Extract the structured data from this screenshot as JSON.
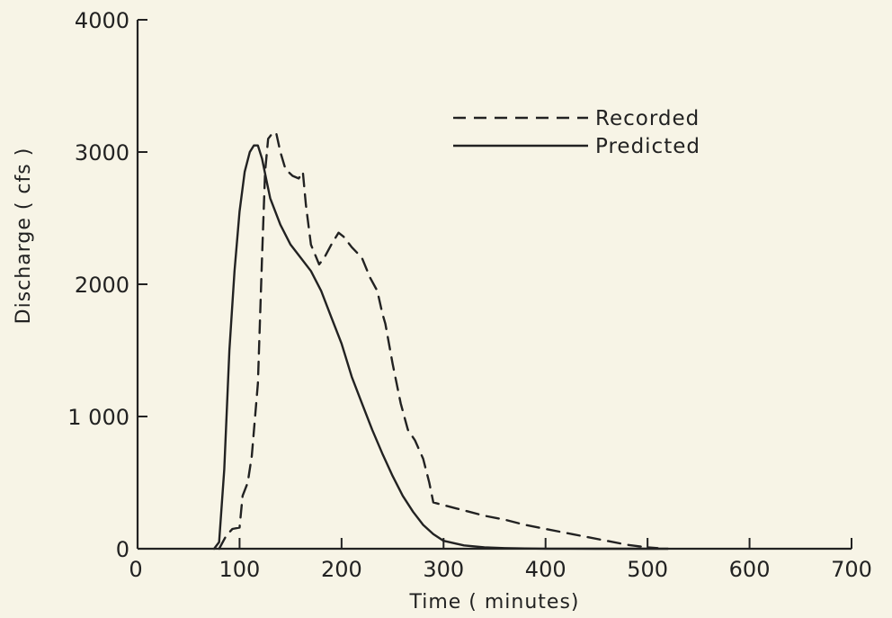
{
  "chart_data": {
    "type": "line",
    "xlabel": "Time ( minutes)",
    "ylabel": "Discharge ( cfs )",
    "xlim": [
      0,
      700
    ],
    "ylim": [
      0,
      4000
    ],
    "xticks": [
      0,
      100,
      200,
      300,
      400,
      500,
      600,
      700
    ],
    "xtick_labels": [
      "0",
      "100",
      "200",
      "300",
      "400",
      "500",
      "600",
      "700"
    ],
    "yticks": [
      0,
      1000,
      2000,
      3000,
      4000
    ],
    "ytick_labels": [
      "0",
      "1 000",
      "2000",
      "3000",
      "4000"
    ],
    "grid": false,
    "legend_position": "top-right",
    "series": [
      {
        "name": "Recorded",
        "style": "dashed",
        "color": "#222222",
        "x": [
          80,
          87,
          93,
          100,
          103,
          108,
          112,
          118,
          122,
          125,
          128,
          133,
          136,
          140,
          145,
          152,
          158,
          162,
          165,
          170,
          178,
          183,
          190,
          197,
          202,
          210,
          220,
          228,
          235,
          240,
          243,
          250,
          258,
          265,
          272,
          280,
          286,
          290,
          300,
          320,
          340,
          360,
          380,
          400,
          420,
          440,
          460,
          480,
          500,
          510
        ],
        "y": [
          0,
          100,
          150,
          160,
          400,
          500,
          700,
          1250,
          2200,
          2850,
          3100,
          3150,
          3140,
          3000,
          2870,
          2820,
          2800,
          2850,
          2600,
          2300,
          2150,
          2200,
          2300,
          2390,
          2360,
          2280,
          2200,
          2050,
          1950,
          1780,
          1700,
          1400,
          1100,
          900,
          820,
          680,
          500,
          350,
          330,
          290,
          250,
          220,
          180,
          150,
          120,
          90,
          60,
          30,
          10,
          5
        ]
      },
      {
        "name": "Predicted",
        "style": "solid",
        "color": "#222222",
        "x": [
          75,
          80,
          85,
          90,
          95,
          100,
          105,
          110,
          114,
          118,
          122,
          126,
          130,
          140,
          150,
          160,
          170,
          180,
          190,
          200,
          210,
          220,
          230,
          240,
          250,
          260,
          270,
          280,
          290,
          300,
          320,
          340,
          360,
          380,
          400,
          450,
          500,
          520
        ],
        "y": [
          0,
          50,
          600,
          1500,
          2100,
          2550,
          2850,
          3000,
          3050,
          3050,
          2950,
          2800,
          2650,
          2450,
          2300,
          2200,
          2100,
          1950,
          1750,
          1550,
          1300,
          1100,
          900,
          720,
          550,
          400,
          280,
          180,
          110,
          60,
          25,
          10,
          5,
          2,
          1,
          0,
          0,
          0
        ]
      }
    ]
  }
}
